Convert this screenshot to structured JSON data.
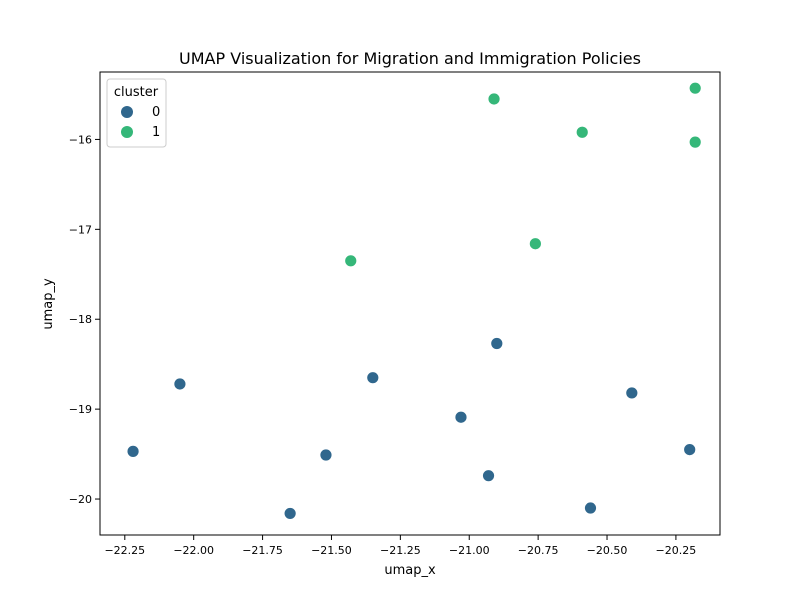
{
  "chart_data": {
    "type": "scatter",
    "title": "UMAP Visualization for Migration and Immigration Policies",
    "xlabel": "umap_x",
    "ylabel": "umap_y",
    "xlim": [
      -22.34,
      -20.09
    ],
    "ylim": [
      -20.4,
      -15.25
    ],
    "xticks": [
      -22.25,
      -22.0,
      -21.75,
      -21.5,
      -21.25,
      -21.0,
      -20.75,
      -20.5,
      -20.25
    ],
    "xtick_labels": [
      "−22.25",
      "−22.00",
      "−21.75",
      "−21.50",
      "−21.25",
      "−21.00",
      "−20.75",
      "−20.50",
      "−20.25"
    ],
    "yticks": [
      -20,
      -19,
      -18,
      -17,
      -16
    ],
    "ytick_labels": [
      "−20",
      "−19",
      "−18",
      "−17",
      "−16"
    ],
    "grid": false,
    "legend": {
      "title": "cluster",
      "position": "top-left"
    },
    "series": [
      {
        "name": "0",
        "color": "#30678d",
        "points": [
          {
            "x": -22.22,
            "y": -19.47
          },
          {
            "x": -22.05,
            "y": -18.72
          },
          {
            "x": -21.65,
            "y": -20.16
          },
          {
            "x": -21.52,
            "y": -19.51
          },
          {
            "x": -21.35,
            "y": -18.65
          },
          {
            "x": -21.03,
            "y": -19.09
          },
          {
            "x": -20.93,
            "y": -19.74
          },
          {
            "x": -20.9,
            "y": -18.27
          },
          {
            "x": -20.56,
            "y": -20.1
          },
          {
            "x": -20.41,
            "y": -18.82
          },
          {
            "x": -20.2,
            "y": -19.45
          }
        ]
      },
      {
        "name": "1",
        "color": "#35b779",
        "points": [
          {
            "x": -21.43,
            "y": -17.35
          },
          {
            "x": -20.91,
            "y": -15.55
          },
          {
            "x": -20.76,
            "y": -17.16
          },
          {
            "x": -20.59,
            "y": -15.92
          },
          {
            "x": -20.18,
            "y": -15.43
          },
          {
            "x": -20.18,
            "y": -16.03
          }
        ]
      }
    ]
  }
}
